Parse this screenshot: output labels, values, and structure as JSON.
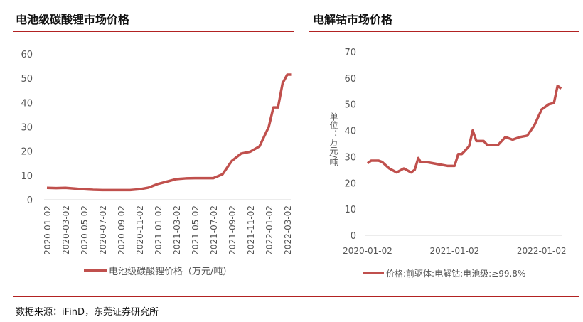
{
  "titles": {
    "left": "电池级碳酸锂市场价格",
    "right": "电解钴市场价格"
  },
  "source": "数据来源：iFinD，东莞证券研究所",
  "colors": {
    "line": "#c0504d",
    "rule": "#b22222"
  },
  "chart_data": [
    {
      "type": "line",
      "title": "电池级碳酸锂市场价格",
      "ylim": [
        0,
        60
      ],
      "yticks": [
        "0",
        "10",
        "20",
        "30",
        "40",
        "50",
        "60"
      ],
      "xticks": [
        "2020-01-02",
        "2020-03-02",
        "2020-05-02",
        "2020-07-02",
        "2020-09-02",
        "2020-11-02",
        "2021-01-02",
        "2021-03-02",
        "2021-05-02",
        "2021-07-02",
        "2021-09-02",
        "2021-11-02",
        "2022-01-02",
        "2022-03-02"
      ],
      "legend": "电池级碳酸锂价格（万元/吨）",
      "x_months": [
        0,
        1,
        2,
        3,
        4,
        5,
        6,
        7,
        8,
        9,
        10,
        11,
        12,
        13,
        14,
        15,
        16,
        17,
        18,
        19,
        20,
        21,
        22,
        23,
        24,
        24.5,
        25,
        25.5,
        26,
        26.5
      ],
      "values": [
        4.9,
        4.8,
        4.9,
        4.6,
        4.3,
        4.1,
        4.0,
        4.0,
        4.0,
        4.0,
        4.3,
        5.0,
        6.5,
        7.5,
        8.5,
        8.8,
        8.9,
        8.9,
        8.9,
        10.5,
        16,
        19,
        19.8,
        22,
        30,
        38,
        38,
        48,
        51.5,
        51.5
      ]
    },
    {
      "type": "line",
      "title": "电解钴市场价格",
      "ylim": [
        0,
        70
      ],
      "yticks": [
        "0",
        "10",
        "20",
        "30",
        "40",
        "50",
        "60",
        "70"
      ],
      "xticks": [
        "2020-01-02",
        "2021-01-02",
        "2022-01-02"
      ],
      "ylabel": "单位：万元/吨",
      "legend": "价格:前驱体:电解钴:电池级:≥99.8%",
      "x_months": [
        0,
        0.5,
        1.5,
        2,
        3,
        4,
        5,
        6,
        6.5,
        7,
        7.3,
        8,
        9,
        10,
        11,
        12,
        12.5,
        13,
        14,
        14.5,
        15,
        16,
        16.5,
        18,
        19,
        20,
        21,
        22,
        23,
        24,
        25,
        25.7,
        26.2,
        26.7
      ],
      "values": [
        27.5,
        28.5,
        28.5,
        28,
        25.5,
        24,
        25.5,
        24,
        25,
        29.5,
        28,
        28,
        27.5,
        27,
        26.5,
        26.5,
        31,
        31,
        34,
        40,
        36,
        36,
        34.5,
        34.5,
        37.5,
        36.5,
        37.5,
        38,
        42,
        48,
        50,
        50.5,
        57,
        56
      ]
    }
  ]
}
